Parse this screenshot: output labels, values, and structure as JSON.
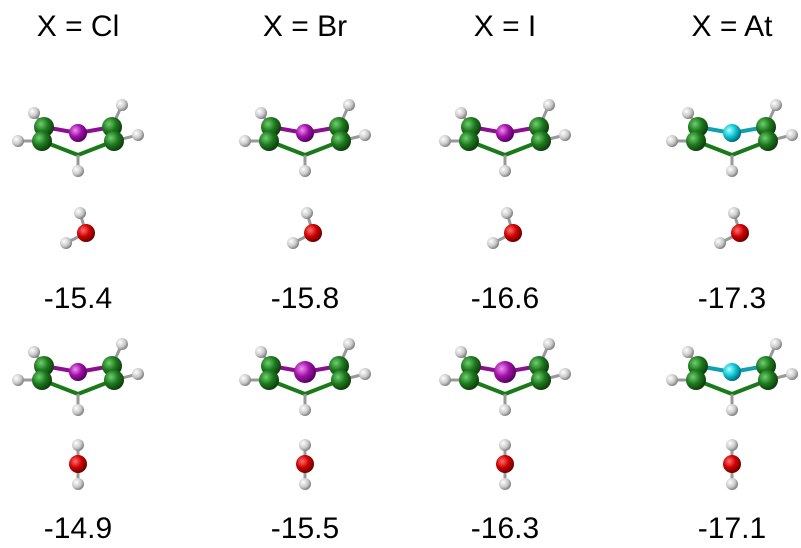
{
  "columns": [
    {
      "label": "X = Cl",
      "energies": [
        -15.4,
        -14.9
      ]
    },
    {
      "label": "X = Br",
      "energies": [
        -15.8,
        -15.5
      ]
    },
    {
      "label": "X = I",
      "energies": [
        -16.6,
        -16.3
      ]
    },
    {
      "label": "X = At",
      "energies": [
        -17.3,
        -17.1
      ]
    }
  ]
}
